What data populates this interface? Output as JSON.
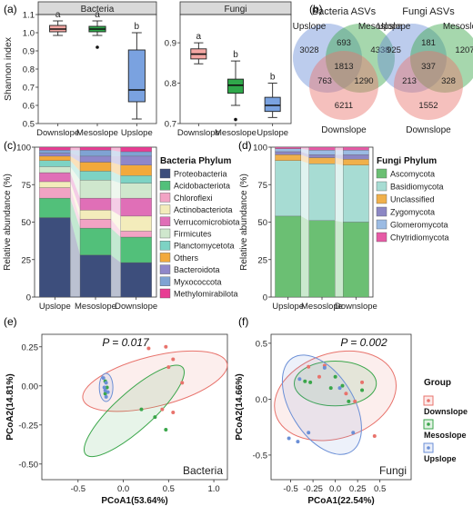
{
  "colors": {
    "downslope": "#e8736c",
    "mesoslope": "#3aa64a",
    "upslope": "#6b8fd6"
  },
  "groups": [
    "Downslope",
    "Mesoslope",
    "Upslope"
  ],
  "panel_labels": {
    "a": "(a)",
    "b": "(b)",
    "c": "(c)",
    "d": "(d)",
    "e": "(e)",
    "f": "(f)"
  },
  "chart_data": [
    {
      "id": "a1",
      "type": "box",
      "strip": "Bacteria",
      "ylabel": "Shannon index",
      "categories": [
        "Downslope",
        "Mesoslope",
        "Upslope"
      ],
      "ylim": [
        0.5,
        1.1
      ],
      "yticks": [
        "0.5",
        "0.6",
        "0.7",
        "0.8",
        "0.9",
        "1.0",
        "1.1"
      ],
      "boxes": [
        {
          "min": 0.985,
          "q1": 1.005,
          "median": 1.02,
          "q3": 1.04,
          "max": 1.065,
          "outliers": [],
          "letter": "a"
        },
        {
          "min": 0.985,
          "q1": 1.005,
          "median": 1.02,
          "q3": 1.035,
          "max": 1.065,
          "outliers": [
            0.92
          ],
          "letter": "a"
        },
        {
          "min": 0.525,
          "q1": 0.62,
          "median": 0.685,
          "q3": 0.905,
          "max": 1.0,
          "outliers": [],
          "letter": "b"
        }
      ]
    },
    {
      "id": "a2",
      "type": "box",
      "strip": "Fungi",
      "categories": [
        "Downslope",
        "Mesoslope",
        "Upslope"
      ],
      "ylim": [
        0.7,
        0.97
      ],
      "yticks": [
        "0.7",
        "0.8",
        "0.9"
      ],
      "boxes": [
        {
          "min": 0.848,
          "q1": 0.86,
          "median": 0.872,
          "q3": 0.885,
          "max": 0.9,
          "outliers": [],
          "letter": "a"
        },
        {
          "min": 0.745,
          "q1": 0.775,
          "median": 0.795,
          "q3": 0.81,
          "max": 0.855,
          "outliers": [
            0.71
          ],
          "letter": "b"
        },
        {
          "min": 0.715,
          "q1": 0.73,
          "median": 0.745,
          "q3": 0.765,
          "max": 0.8,
          "outliers": [],
          "letter": "b"
        }
      ]
    },
    {
      "id": "b1",
      "type": "venn",
      "title": "Bacteria ASVs",
      "sets": [
        "Upslope",
        "Mesoslope",
        "Downslope"
      ],
      "counts": {
        "up_only": "3028",
        "up_meso": "693",
        "meso_only": "4338",
        "all": "1813",
        "up_down": "763",
        "meso_down": "1290",
        "down_only": "6211"
      }
    },
    {
      "id": "b2",
      "type": "venn",
      "title": "Fungi ASVs",
      "sets": [
        "Upslope",
        "Mesoslope",
        "Downslope"
      ],
      "counts": {
        "up_only": "925",
        "up_meso": "181",
        "meso_only": "1207",
        "all": "337",
        "up_down": "213",
        "meso_down": "328",
        "down_only": "1552"
      }
    },
    {
      "id": "c",
      "type": "stacked_bar",
      "legend_title": "Bacteria Phylum",
      "ylabel": "Relative abundance (%)",
      "categories": [
        "Upslope",
        "Mesoslope",
        "Downslope"
      ],
      "ylim": [
        0,
        100
      ],
      "yticks": [
        "0",
        "25",
        "50",
        "75",
        "100"
      ],
      "series": [
        {
          "name": "Proteobacteria",
          "color": "#3d4e7c",
          "values": [
            53,
            28,
            23
          ]
        },
        {
          "name": "Acidobacteriota",
          "color": "#52c07a",
          "values": [
            13,
            18,
            17
          ]
        },
        {
          "name": "Chloroflexi",
          "color": "#f2a3c4",
          "values": [
            7,
            6,
            4
          ]
        },
        {
          "name": "Actinobacteriota",
          "color": "#f3ecbb",
          "values": [
            4,
            6,
            10
          ]
        },
        {
          "name": "Verrucomicrobiota",
          "color": "#e06fb7",
          "values": [
            6,
            8,
            12
          ]
        },
        {
          "name": "Firmicutes",
          "color": "#cfe7cd",
          "values": [
            4,
            12,
            10
          ]
        },
        {
          "name": "Planctomycetota",
          "color": "#7dd3c4",
          "values": [
            4,
            6,
            5
          ]
        },
        {
          "name": "Others",
          "color": "#f2a93b",
          "values": [
            3,
            6,
            7
          ]
        },
        {
          "name": "Bacteroidota",
          "color": "#8f87c9",
          "values": [
            2,
            4,
            6
          ]
        },
        {
          "name": "Myxococcota",
          "color": "#7fa3d3",
          "values": [
            2,
            4,
            3
          ]
        },
        {
          "name": "Methylomirabilota",
          "color": "#e83d93",
          "values": [
            2,
            2,
            3
          ]
        }
      ]
    },
    {
      "id": "d",
      "type": "stacked_bar",
      "legend_title": "Fungi Phylum",
      "ylabel": "Relative abundance (%)",
      "categories": [
        "Upslope",
        "Mesoslope",
        "Downslope"
      ],
      "ylim": [
        0,
        100
      ],
      "yticks": [
        "0",
        "25",
        "50",
        "75",
        "100"
      ],
      "series": [
        {
          "name": "Ascomycota",
          "color": "#6bbf73",
          "values": [
            54,
            51,
            50
          ]
        },
        {
          "name": "Basidiomycota",
          "color": "#a7dcd3",
          "values": [
            37,
            38,
            38
          ]
        },
        {
          "name": "Unclassified",
          "color": "#f0b04b",
          "values": [
            4,
            4,
            4
          ]
        },
        {
          "name": "Zygomycota",
          "color": "#8c87c4",
          "values": [
            2,
            2,
            3
          ]
        },
        {
          "name": "Glomeromycota",
          "color": "#9bbbe3",
          "values": [
            2,
            3,
            3
          ]
        },
        {
          "name": "Chytridiomycota",
          "color": "#e65aa5",
          "values": [
            1,
            2,
            2
          ]
        }
      ]
    },
    {
      "id": "e",
      "type": "scatter",
      "annotation": "P = 0.017",
      "corner_label": "Bacteria",
      "xlabel": "PCoA1(53.64%)",
      "ylabel": "PCoA2(14.81%)",
      "xlim": [
        -0.9,
        1.15
      ],
      "ylim": [
        -0.6,
        0.33
      ],
      "xticks": [
        -0.5,
        0.0,
        0.5,
        1.0
      ],
      "xtick_labels": [
        "-0.5",
        "0.0",
        "0.5",
        "1.0"
      ],
      "yticks": [
        -0.5,
        -0.25,
        0.0,
        0.25
      ],
      "ytick_labels": [
        "-0.50",
        "-0.25",
        "0.00",
        "0.25"
      ],
      "series": [
        {
          "name": "Downslope",
          "points": [
            [
              0.28,
              0.24
            ],
            [
              0.47,
              0.25
            ],
            [
              0.55,
              0.17
            ],
            [
              0.5,
              0.12
            ],
            [
              0.65,
              0.02
            ],
            [
              0.43,
              -0.15
            ],
            [
              0.55,
              -0.17
            ]
          ]
        },
        {
          "name": "Mesoslope",
          "points": [
            [
              -0.2,
              0.03
            ],
            [
              -0.18,
              -0.01
            ],
            [
              -0.2,
              -0.05
            ],
            [
              0.2,
              -0.15
            ],
            [
              0.35,
              -0.2
            ],
            [
              0.47,
              -0.28
            ]
          ]
        },
        {
          "name": "Upslope",
          "points": [
            [
              -0.22,
              0.05
            ],
            [
              -0.19,
              0.02
            ],
            [
              -0.21,
              -0.01
            ],
            [
              -0.17,
              -0.04
            ],
            [
              -0.19,
              -0.07
            ],
            [
              -0.2,
              -0.03
            ]
          ]
        }
      ],
      "ellipses": [
        {
          "group": "Downslope",
          "cx": 0.35,
          "cy": 0.03,
          "rx": 0.82,
          "ry": 0.16,
          "angle": -14
        },
        {
          "group": "Mesoslope",
          "cx": 0.12,
          "cy": -0.16,
          "rx": 0.72,
          "ry": 0.12,
          "angle": -42
        },
        {
          "group": "Upslope",
          "cx": -0.19,
          "cy": -0.01,
          "rx": 0.075,
          "ry": 0.09,
          "angle": 0
        }
      ]
    },
    {
      "id": "f",
      "type": "scatter",
      "annotation": "P = 0.002",
      "corner_label": "Fungi",
      "xlabel": "PCoA1(22.54%)",
      "ylabel": "PCoA2(14.66%)",
      "xlim": [
        -0.72,
        0.85
      ],
      "ylim": [
        -0.72,
        0.58
      ],
      "xticks": [
        -0.5,
        -0.25,
        0.0,
        0.25,
        0.5
      ],
      "xtick_labels": [
        "-0.5",
        "-0.25",
        "0.0",
        "0.25",
        "0.5"
      ],
      "yticks": [
        -0.5,
        0.0,
        0.5
      ],
      "ytick_labels": [
        "-0.5",
        "0.0",
        "0.5"
      ],
      "legend_title": "Group",
      "series": [
        {
          "name": "Downslope",
          "points": [
            [
              -0.3,
              0.29
            ],
            [
              -0.12,
              0.3
            ],
            [
              -0.18,
              0.2
            ],
            [
              0.3,
              0.15
            ],
            [
              0.12,
              0.05
            ],
            [
              0.22,
              -0.02
            ],
            [
              0.44,
              -0.33
            ]
          ]
        },
        {
          "name": "Mesoslope",
          "points": [
            [
              -0.28,
              0.15
            ],
            [
              0.0,
              0.2
            ],
            [
              -0.05,
              0.1
            ],
            [
              0.08,
              0.12
            ],
            [
              0.3,
              0.08
            ],
            [
              0.15,
              -0.02
            ],
            [
              -0.34,
              0.16
            ]
          ]
        },
        {
          "name": "Upslope",
          "points": [
            [
              -0.4,
              0.18
            ],
            [
              -0.12,
              0.28
            ],
            [
              0.05,
              0.1
            ],
            [
              -0.52,
              -0.35
            ],
            [
              -0.42,
              -0.38
            ],
            [
              -0.3,
              -0.3
            ],
            [
              0.2,
              -0.3
            ]
          ]
        }
      ],
      "ellipses": [
        {
          "group": "Downslope",
          "cx": 0.0,
          "cy": 0.03,
          "rx": 0.7,
          "ry": 0.38,
          "angle": -18
        },
        {
          "group": "Mesoslope",
          "cx": 0.0,
          "cy": 0.14,
          "rx": 0.46,
          "ry": 0.2,
          "angle": 0
        },
        {
          "group": "Upslope",
          "cx": -0.15,
          "cy": -0.05,
          "rx": 0.62,
          "ry": 0.28,
          "angle": 58
        }
      ]
    }
  ]
}
